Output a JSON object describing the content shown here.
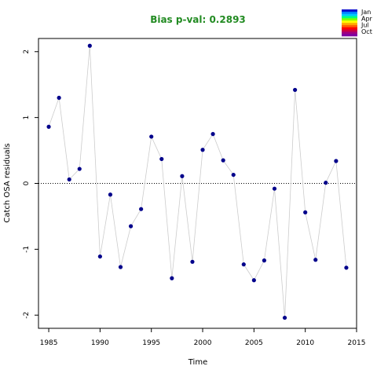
{
  "chart_data": {
    "type": "scatter",
    "title": "Bias p-val: 0.2893",
    "title_color": "#228B22",
    "xlabel": "Time",
    "ylabel": "Catch OSA residuals",
    "xlim": [
      1984,
      2015
    ],
    "ylim": [
      -2.2,
      2.2
    ],
    "x_ticks": [
      1985,
      1990,
      1995,
      2000,
      2005,
      2010,
      2015
    ],
    "y_ticks": [
      -2,
      -1,
      0,
      1,
      2
    ],
    "reference_line": 0,
    "grid": false,
    "point_color": "#00008B",
    "line_color": "#cccccc",
    "series": [
      {
        "x": [
          1985,
          1986,
          1987,
          1988,
          1989,
          1990,
          1991,
          1992,
          1993,
          1994,
          1995,
          1996,
          1997,
          1998,
          1999,
          2000,
          2001,
          2002,
          2003,
          2004,
          2005,
          2006,
          2007,
          2008,
          2009,
          2010,
          2011,
          2012,
          2013,
          2014
        ],
        "y": [
          0.86,
          1.3,
          0.06,
          0.22,
          2.09,
          -1.11,
          -0.17,
          -1.27,
          -0.65,
          -0.39,
          0.71,
          0.37,
          -1.44,
          0.11,
          -1.19,
          0.51,
          0.75,
          0.35,
          0.13,
          -1.23,
          -1.47,
          -1.17,
          -0.08,
          -2.04,
          1.42,
          -0.44,
          -1.16,
          0.01,
          0.34,
          -1.28
        ]
      }
    ],
    "legend": {
      "placement": "top-right",
      "labels": [
        "Jan",
        "Apr",
        "Jul",
        "Oct"
      ],
      "colors": [
        "#0000CD",
        "#0080FF",
        "#00C8FF",
        "#00FF80",
        "#80FF00",
        "#FFFF00",
        "#FFB000",
        "#FF6000",
        "#FF0000",
        "#D00040",
        "#A00080",
        "#8000A0"
      ]
    }
  }
}
